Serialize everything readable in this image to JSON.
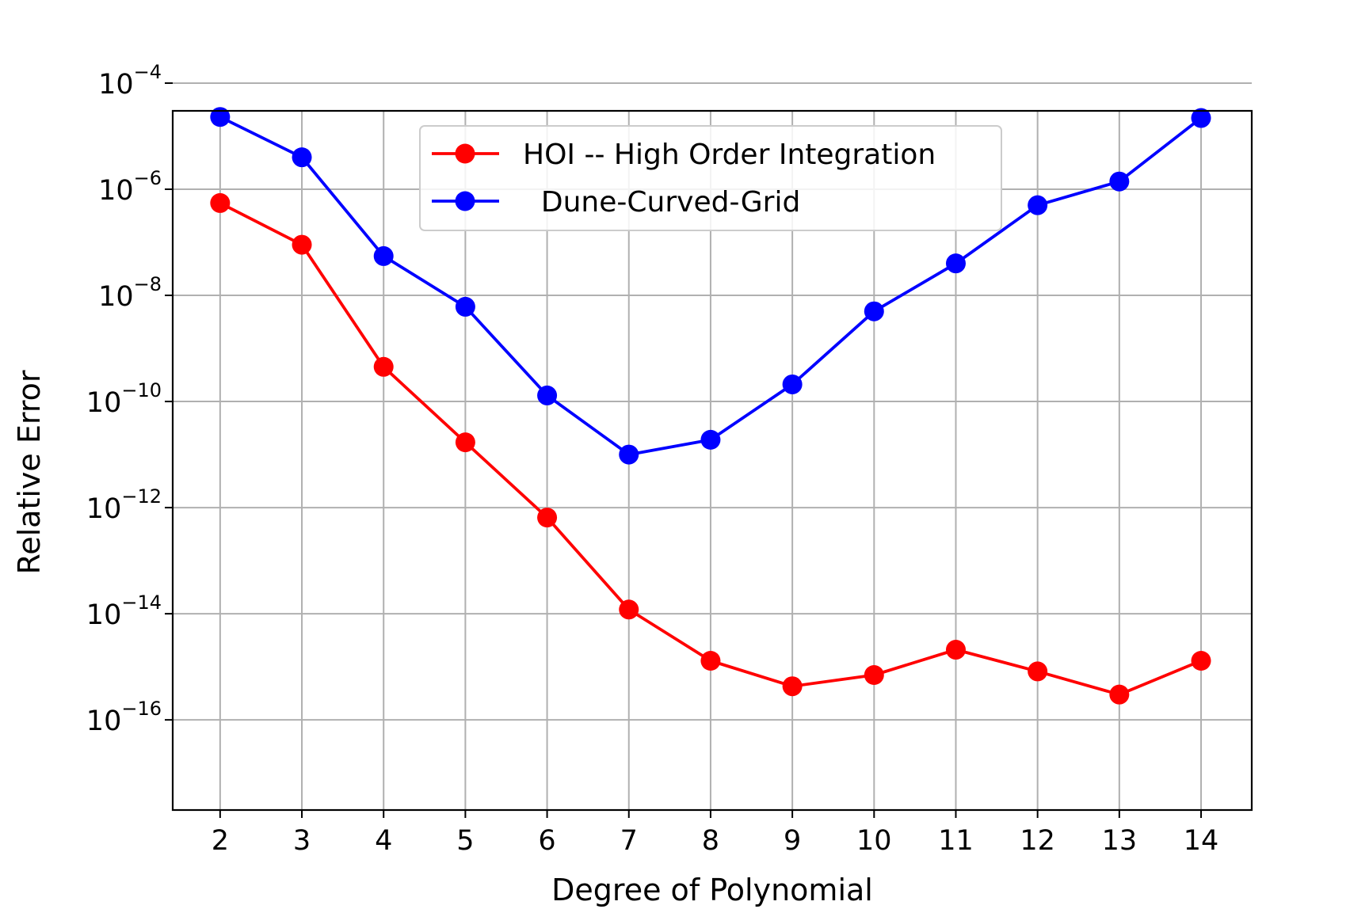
{
  "chart_data": {
    "type": "line",
    "title": "",
    "xlabel": "Degree of Polynomial",
    "ylabel": "Relative Error",
    "yscale": "log",
    "x": [
      2,
      3,
      4,
      5,
      6,
      7,
      8,
      9,
      10,
      11,
      12,
      13,
      14
    ],
    "x_ticks": [
      "2",
      "3",
      "4",
      "5",
      "6",
      "7",
      "8",
      "9",
      "10",
      "11",
      "12",
      "13",
      "14"
    ],
    "xlim": [
      1.42,
      14.62
    ],
    "ylim": [
      2e-18,
      3e-05
    ],
    "y_ticks": [
      {
        "value": 0.0001,
        "base": "10",
        "exp": "−4"
      },
      {
        "value": 1e-06,
        "base": "10",
        "exp": "−6"
      },
      {
        "value": 1e-08,
        "base": "10",
        "exp": "−8"
      },
      {
        "value": 1e-10,
        "base": "10",
        "exp": "−10"
      },
      {
        "value": 1e-12,
        "base": "10",
        "exp": "−12"
      },
      {
        "value": 1e-14,
        "base": "10",
        "exp": "−14"
      },
      {
        "value": 1e-16,
        "base": "10",
        "exp": "−16"
      }
    ],
    "grid": true,
    "legend_position": "upper-center",
    "series": [
      {
        "name": "HOI -- High Order Integration",
        "color": "#ff0000",
        "marker": "circle",
        "values": [
          5.5e-07,
          9e-08,
          4.5e-10,
          1.7e-11,
          6.5e-13,
          1.2e-14,
          1.3e-15,
          4.3e-16,
          7e-16,
          2.1e-15,
          8.2e-16,
          3e-16,
          1.3e-15
        ]
      },
      {
        "name": "  Dune-Curved-Grid",
        "color": "#0000ff",
        "marker": "circle",
        "values": [
          2.3e-05,
          4e-06,
          5.5e-08,
          6.1e-09,
          1.3e-10,
          1e-11,
          1.9e-11,
          2.1e-10,
          5e-09,
          4e-08,
          5e-07,
          1.4e-06,
          2.2e-05
        ]
      }
    ]
  }
}
